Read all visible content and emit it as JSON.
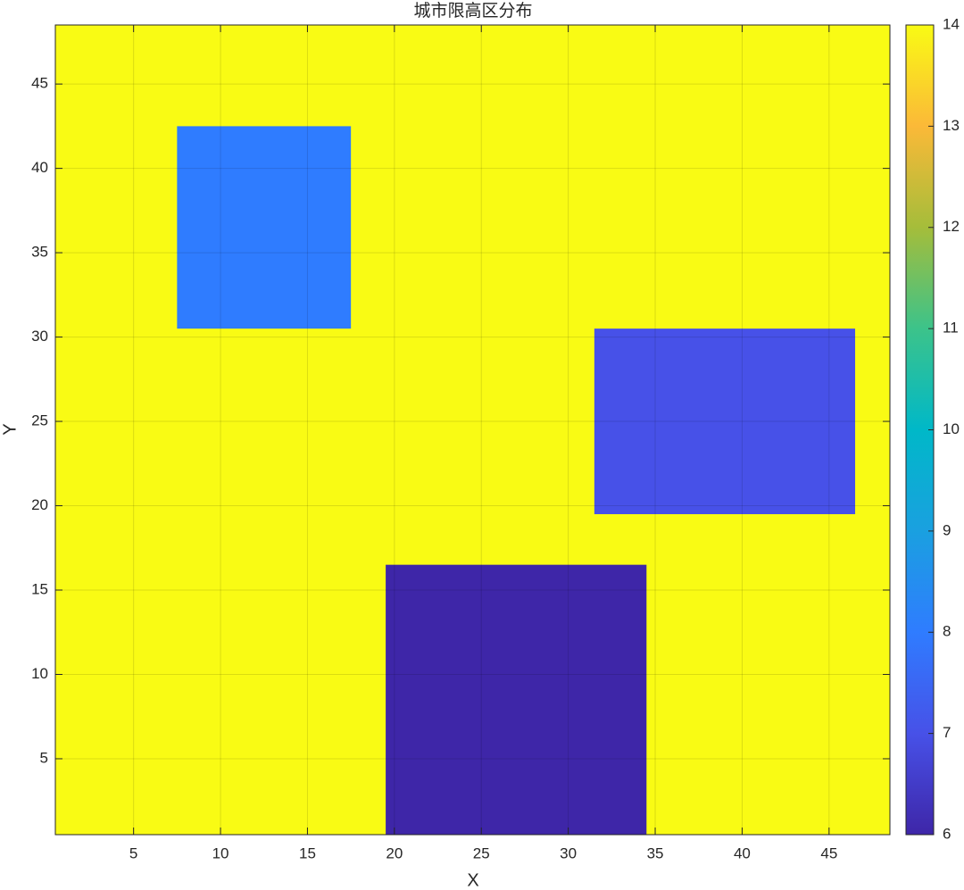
{
  "chart_data": {
    "type": "heatmap",
    "title": "城市限高区分布",
    "xlabel": "X",
    "ylabel": "Y",
    "xlim": [
      0.5,
      48.5
    ],
    "ylim": [
      0.5,
      48.5
    ],
    "xticks": [
      5,
      10,
      15,
      20,
      25,
      30,
      35,
      40,
      45
    ],
    "yticks": [
      5,
      10,
      15,
      20,
      25,
      30,
      35,
      40,
      45
    ],
    "grid": true,
    "background": 14,
    "regions": [
      {
        "x": [
          8,
          17
        ],
        "y": [
          31,
          42
        ],
        "value": 8
      },
      {
        "x": [
          32,
          46
        ],
        "y": [
          20,
          30
        ],
        "value": 7
      },
      {
        "x": [
          20,
          34
        ],
        "y": [
          1,
          16
        ],
        "value": 6
      }
    ],
    "clim": [
      6,
      14
    ],
    "cticks": [
      6,
      7,
      8,
      9,
      10,
      11,
      12,
      13,
      14
    ],
    "colormap": [
      "#3e26a8",
      "#4751e8",
      "#2f7cff",
      "#1aa0e0",
      "#00b8c8",
      "#3cc38a",
      "#a5bd3a",
      "#fbb938",
      "#f9fb14"
    ]
  }
}
